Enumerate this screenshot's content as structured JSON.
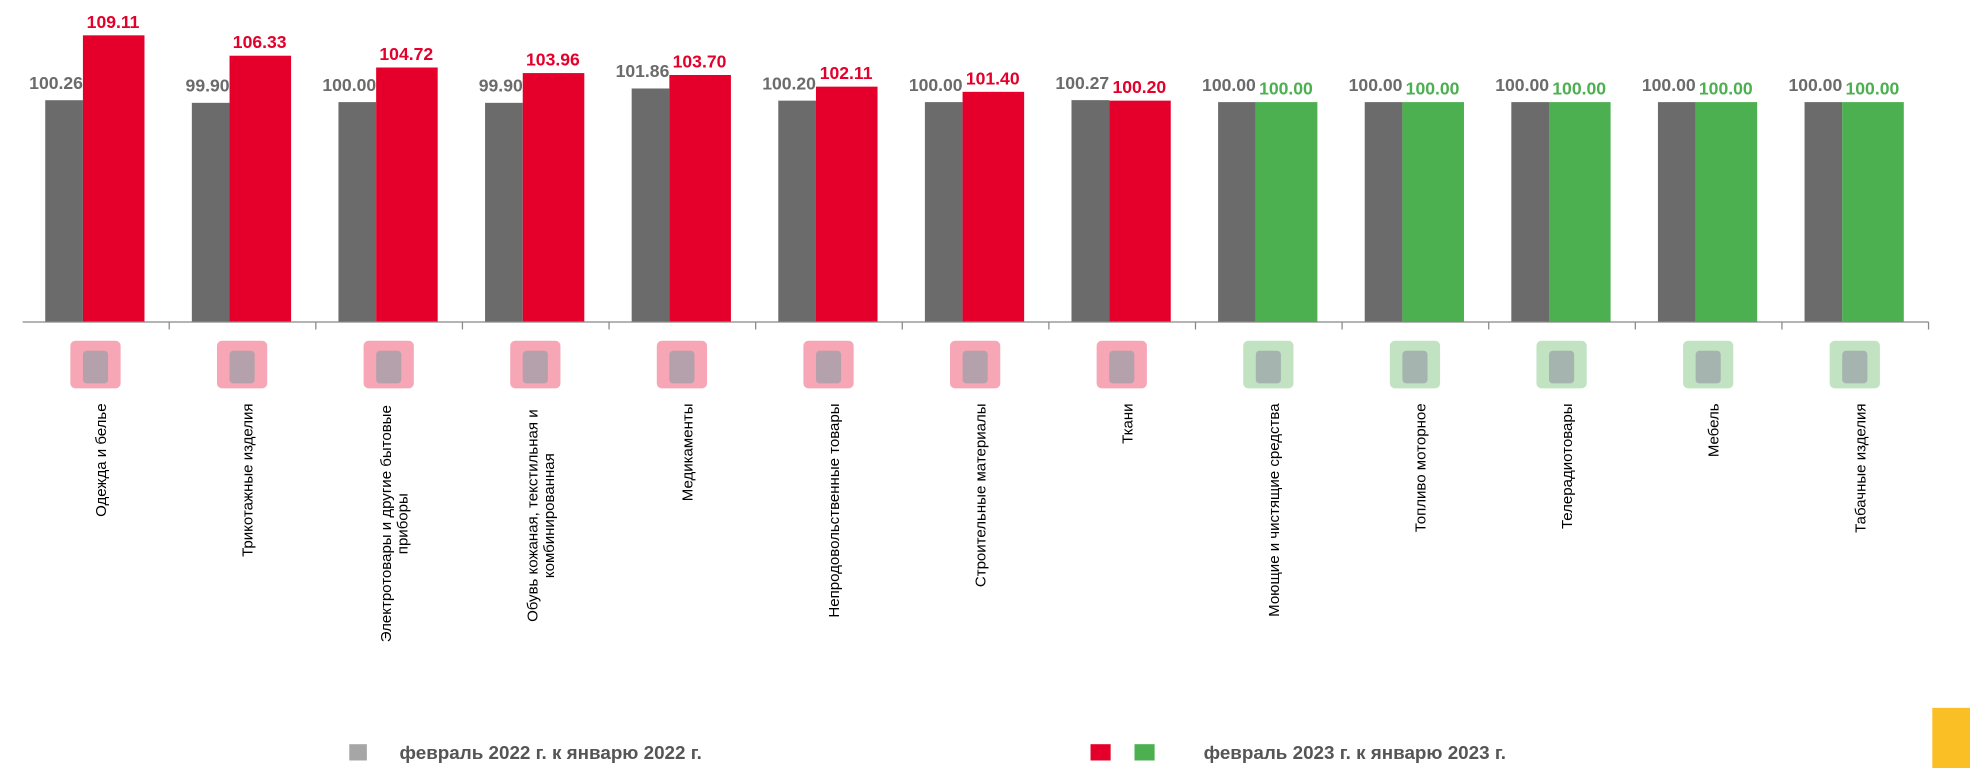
{
  "chart_data": {
    "type": "bar",
    "categories": [
      "Одежда и белье",
      "Трикотажные изделия",
      "Электротовары и другие бытовые приборы",
      "Обувь кожаная, текстильная и комбинированная",
      "Медикаменты",
      "Непродовольственные товары",
      "Строительные материалы",
      "Ткани",
      "Моющие и чистящие средства",
      "Топливо моторное",
      "Телерадиотовары",
      "Мебель",
      "Табачные изделия"
    ],
    "series": [
      {
        "name": "февраль 2022 г. к январю 2022 г.",
        "color": "#6b6b6b",
        "label_color": "#6b6b6b",
        "values": [
          100.26,
          99.9,
          100,
          99.9,
          101.86,
          100.2,
          100,
          100.27,
          100,
          100,
          100,
          100,
          100
        ],
        "value_labels": [
          "100.26",
          "99.90",
          "100.00",
          "99.90",
          "101.86",
          "100.20",
          "100.00",
          "100.27",
          "100.00",
          "100.00",
          "100.00",
          "100.00",
          "100.00"
        ]
      },
      {
        "name": "февраль 2023 г. к январю 2023 г.",
        "colors": [
          "#e4002b",
          "#e4002b",
          "#e4002b",
          "#e4002b",
          "#e4002b",
          "#e4002b",
          "#e4002b",
          "#e4002b",
          "#4caf50",
          "#4caf50",
          "#4caf50",
          "#4caf50",
          "#4caf50"
        ],
        "values": [
          109.11,
          106.33,
          104.72,
          103.96,
          103.7,
          102.11,
          101.4,
          100.2,
          100,
          100,
          100,
          100,
          100
        ],
        "value_labels": [
          "109.11",
          "106.33",
          "104.72",
          "103.96",
          "103.70",
          "102.11",
          "101.40",
          "100.20",
          "100.00",
          "100.00",
          "100.00",
          "100.00",
          "100.00"
        ]
      }
    ],
    "ylim": [
      70,
      110
    ]
  }
}
